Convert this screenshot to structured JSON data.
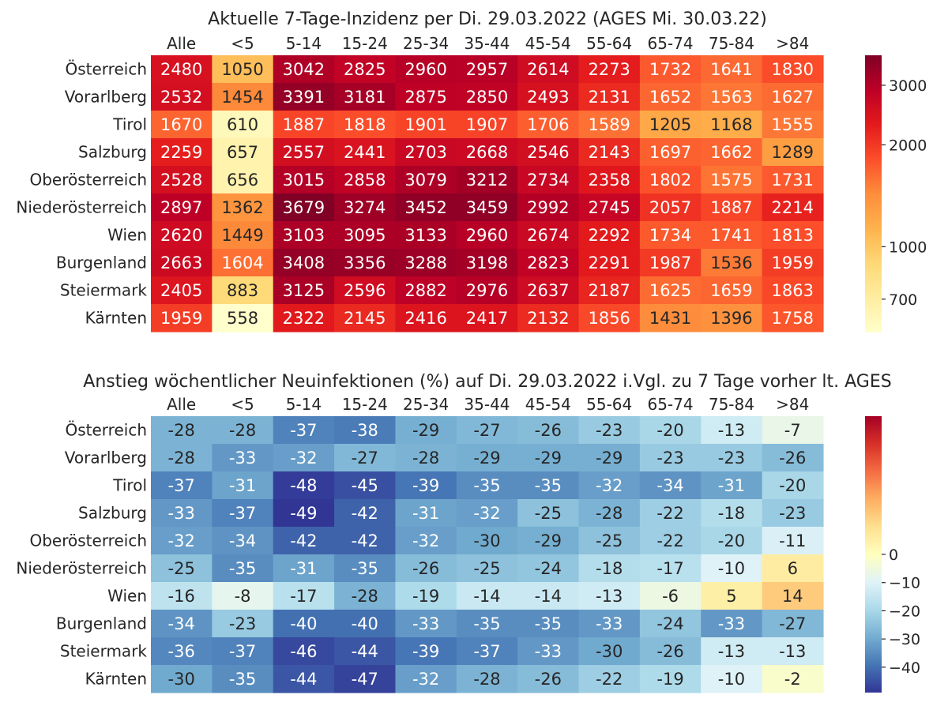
{
  "chart_data": [
    {
      "type": "heatmap",
      "title": "Aktuelle 7-Tage-Inzidenz per Di. 29.03.2022  (AGES Mi. 30.03.22)",
      "colormap": "YlOrRd (log scale)",
      "x_labels": [
        "Alle",
        "<5",
        "5-14",
        "15-24",
        "25-34",
        "35-44",
        "45-54",
        "55-64",
        "65-74",
        "75-84",
        ">84"
      ],
      "y_labels": [
        "Österreich",
        "Vorarlberg",
        "Tirol",
        "Salzburg",
        "Oberösterreich",
        "Niederösterreich",
        "Wien",
        "Burgenland",
        "Steiermark",
        "Kärnten"
      ],
      "values": [
        [
          2480,
          1050,
          3042,
          2825,
          2960,
          2957,
          2614,
          2273,
          1732,
          1641,
          1830
        ],
        [
          2532,
          1454,
          3391,
          3181,
          2875,
          2850,
          2493,
          2131,
          1652,
          1563,
          1627
        ],
        [
          1670,
          610,
          1887,
          1818,
          1901,
          1907,
          1706,
          1589,
          1205,
          1168,
          1555
        ],
        [
          2259,
          657,
          2557,
          2441,
          2703,
          2668,
          2546,
          2143,
          1697,
          1662,
          1289
        ],
        [
          2528,
          656,
          3015,
          2858,
          3079,
          3212,
          2734,
          2358,
          1802,
          1575,
          1731
        ],
        [
          2897,
          1362,
          3679,
          3274,
          3452,
          3459,
          2992,
          2745,
          2057,
          1887,
          2214
        ],
        [
          2620,
          1449,
          3103,
          3095,
          3133,
          2960,
          2674,
          2292,
          1734,
          1741,
          1813
        ],
        [
          2663,
          1604,
          3408,
          3356,
          3288,
          3198,
          2823,
          2291,
          1987,
          1536,
          1959
        ],
        [
          2405,
          883,
          3125,
          2596,
          2882,
          2976,
          2637,
          2187,
          1625,
          1659,
          1863
        ],
        [
          1959,
          558,
          2322,
          2145,
          2416,
          2417,
          2132,
          1856,
          1431,
          1396,
          1758
        ]
      ],
      "colorbar": {
        "min": 558,
        "max": 3679,
        "ticks": [
          700,
          1000,
          2000,
          3000
        ],
        "scale": "log"
      }
    },
    {
      "type": "heatmap",
      "title": "Anstieg wöchentlicher Neuinfektionen (%) auf Di. 29.03.2022 i.Vgl. zu 7 Tage vorher lt. AGES",
      "colormap": "RdYlBu_r (centered at 0)",
      "x_labels": [
        "Alle",
        "<5",
        "5-14",
        "15-24",
        "25-34",
        "35-44",
        "45-54",
        "55-64",
        "65-74",
        "75-84",
        ">84"
      ],
      "y_labels": [
        "Österreich",
        "Vorarlberg",
        "Tirol",
        "Salzburg",
        "Oberösterreich",
        "Niederösterreich",
        "Wien",
        "Burgenland",
        "Steiermark",
        "Kärnten"
      ],
      "values": [
        [
          -28,
          -28,
          -37,
          -38,
          -29,
          -27,
          -26,
          -23,
          -20,
          -13,
          -7
        ],
        [
          -28,
          -33,
          -32,
          -27,
          -28,
          -29,
          -29,
          -29,
          -23,
          -23,
          -26
        ],
        [
          -37,
          -31,
          -48,
          -45,
          -39,
          -35,
          -35,
          -32,
          -34,
          -31,
          -20
        ],
        [
          -33,
          -37,
          -49,
          -42,
          -31,
          -32,
          -25,
          -28,
          -22,
          -18,
          -23
        ],
        [
          -32,
          -34,
          -42,
          -42,
          -32,
          -30,
          -29,
          -25,
          -22,
          -20,
          -11
        ],
        [
          -25,
          -35,
          -31,
          -35,
          -26,
          -25,
          -24,
          -18,
          -17,
          -10,
          6
        ],
        [
          -16,
          -8,
          -17,
          -28,
          -19,
          -14,
          -14,
          -13,
          -6,
          5,
          14
        ],
        [
          -34,
          -23,
          -40,
          -40,
          -33,
          -35,
          -35,
          -33,
          -24,
          -33,
          -27
        ],
        [
          -36,
          -37,
          -46,
          -44,
          -39,
          -37,
          -33,
          -30,
          -26,
          -13,
          -13
        ],
        [
          -30,
          -35,
          -44,
          -47,
          -32,
          -28,
          -26,
          -22,
          -19,
          -10,
          -2
        ]
      ],
      "colorbar": {
        "min": -49,
        "max": 49,
        "ticks": [
          0,
          -10,
          -20,
          -30,
          -40
        ],
        "tick_labels": [
          "0",
          "−10",
          "−20",
          "−30",
          "−40"
        ],
        "center": 0
      }
    }
  ]
}
